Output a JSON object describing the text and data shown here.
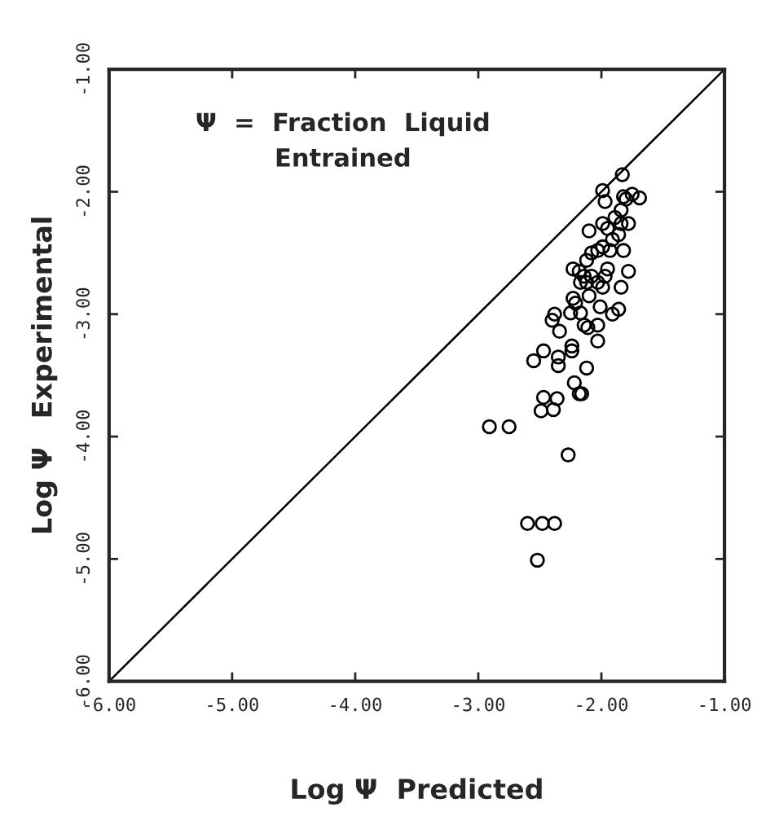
{
  "chart_data": {
    "type": "scatter",
    "xlabel": "Log Ψ  Predicted",
    "ylabel": "Log Ψ   Experimental",
    "annotations": [
      "Ψ  =  Fraction  Liquid\nEntrained"
    ],
    "xlim": [
      -6,
      -1
    ],
    "ylim": [
      -6,
      -1
    ],
    "xticks": [
      {
        "value": -6,
        "label": "-6.00"
      },
      {
        "value": -5,
        "label": "-5.00"
      },
      {
        "value": -4,
        "label": "-4.00"
      },
      {
        "value": -3,
        "label": "-3.00"
      },
      {
        "value": -2,
        "label": "-2.00"
      },
      {
        "value": -1,
        "label": "-1.00"
      }
    ],
    "yticks": [
      {
        "value": -6,
        "label": "-6.00"
      },
      {
        "value": -5,
        "label": "-5.00"
      },
      {
        "value": -4,
        "label": "-4.00"
      },
      {
        "value": -3,
        "label": "-3.00"
      },
      {
        "value": -2,
        "label": "-2.00"
      },
      {
        "value": -1,
        "label": "-1.00"
      }
    ],
    "grid": false,
    "legend": false,
    "series": [
      {
        "color": "#000000",
        "marker": "circle",
        "x": [
          -2.91,
          -2.75,
          -2.27,
          -2.6,
          -2.48,
          -2.38,
          -2.52,
          -2.49,
          -2.47,
          -2.36,
          -2.39,
          -2.55,
          -2.47,
          -2.35,
          -2.35,
          -2.24,
          -2.24,
          -2.22,
          -2.18,
          -2.16,
          -2.12,
          -2.03,
          -2.4,
          -2.38,
          -2.34,
          -2.25,
          -2.23,
          -2.21,
          -2.17,
          -2.14,
          -2.11,
          -2.03,
          -2.23,
          -2.1,
          -2.14,
          -2.12,
          -2.08,
          -2.03,
          -1.99,
          -2.01,
          -1.95,
          -1.91,
          -1.86,
          -1.84,
          -1.78,
          -2.1,
          -2.08,
          -2.03,
          -1.99,
          -1.93,
          -1.91,
          -1.99,
          -1.95,
          -1.89,
          -1.84,
          -1.82,
          -1.78,
          -1.99,
          -1.97,
          -1.84,
          -1.82,
          -1.8,
          -1.75,
          -1.69,
          -1.83,
          -1.86,
          -2.12,
          -2.18,
          -2.17,
          -1.97
        ],
        "values": [
          -3.92,
          -3.92,
          -4.15,
          -4.71,
          -4.71,
          -4.71,
          -5.01,
          -3.79,
          -3.68,
          -3.69,
          -3.78,
          -3.38,
          -3.3,
          -3.35,
          -3.42,
          -3.26,
          -3.3,
          -3.56,
          -3.65,
          -3.65,
          -3.44,
          -3.22,
          -3.05,
          -3.0,
          -3.14,
          -2.99,
          -2.87,
          -2.91,
          -2.99,
          -3.09,
          -3.11,
          -3.09,
          -2.63,
          -2.85,
          -2.69,
          -2.74,
          -2.69,
          -2.74,
          -2.78,
          -2.94,
          -2.63,
          -3.0,
          -2.96,
          -2.78,
          -2.65,
          -2.32,
          -2.5,
          -2.48,
          -2.45,
          -2.48,
          -2.39,
          -2.26,
          -2.3,
          -2.21,
          -2.26,
          -2.48,
          -2.26,
          -1.99,
          -2.08,
          -2.15,
          -2.04,
          -2.06,
          -2.02,
          -2.05,
          -1.86,
          -2.35,
          -2.56,
          -2.65,
          -2.74,
          -2.69
        ]
      },
      {
        "type": "line",
        "color": "#000000",
        "line_style": "solid",
        "x": [
          -6,
          -1
        ],
        "values": [
          -6,
          -1
        ]
      }
    ]
  }
}
